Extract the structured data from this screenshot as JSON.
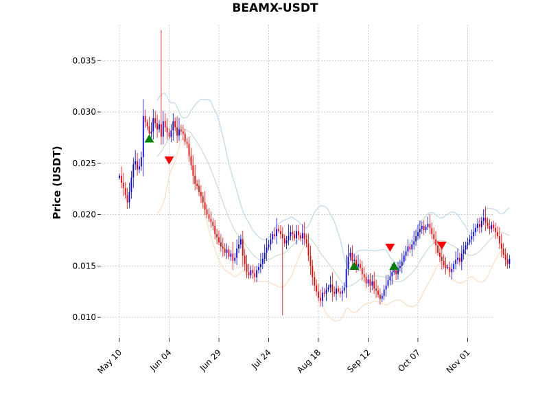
{
  "chart_data": {
    "type": "candlestick",
    "title": "BEAMX-USDT",
    "ylabel": "Price (USDT)",
    "xlabel": "",
    "start_date": "2024-05-10",
    "ylim": [
      0.008,
      0.0385
    ],
    "grid": true,
    "x_ticks": [
      "May 10",
      "Jun 04",
      "Jun 29",
      "Jul 24",
      "Aug 18",
      "Sep 12",
      "Oct 07",
      "Nov 01"
    ],
    "y_ticks": [
      "0.010",
      "0.015",
      "0.020",
      "0.025",
      "0.030",
      "0.035"
    ],
    "close": [
      0.0238,
      0.0231,
      0.0226,
      0.0219,
      0.0212,
      0.0222,
      0.0236,
      0.0249,
      0.0252,
      0.0244,
      0.0247,
      0.0256,
      0.0296,
      0.029,
      0.0286,
      0.0279,
      0.0281,
      0.0294,
      0.0289,
      0.0283,
      0.0288,
      0.0276,
      0.0291,
      0.0285,
      0.028,
      0.0276,
      0.0282,
      0.0291,
      0.0285,
      0.0277,
      0.0283,
      0.0281,
      0.0279,
      0.0271,
      0.0269,
      0.0257,
      0.0248,
      0.0238,
      0.023,
      0.0228,
      0.0222,
      0.0218,
      0.0212,
      0.0205,
      0.02,
      0.0196,
      0.0193,
      0.0189,
      0.0181,
      0.0178,
      0.0173,
      0.0169,
      0.0167,
      0.0163,
      0.0166,
      0.0159,
      0.0162,
      0.0155,
      0.0158,
      0.0167,
      0.0171,
      0.0176,
      0.016,
      0.0152,
      0.0144,
      0.0141,
      0.0146,
      0.0143,
      0.0139,
      0.0146,
      0.0149,
      0.0152,
      0.0157,
      0.0163,
      0.0168,
      0.0171,
      0.0176,
      0.0181,
      0.0179,
      0.0186,
      0.0184,
      0.0181,
      0.0177,
      0.0172,
      0.0175,
      0.0179,
      0.0183,
      0.0181,
      0.0177,
      0.0184,
      0.018,
      0.0177,
      0.0182,
      0.0176,
      0.0172,
      0.016,
      0.015,
      0.0139,
      0.0131,
      0.0125,
      0.0119,
      0.0116,
      0.0124,
      0.0123,
      0.0127,
      0.0129,
      0.0132,
      0.0125,
      0.0123,
      0.0128,
      0.0125,
      0.0123,
      0.0126,
      0.0129,
      0.0147,
      0.0159,
      0.0163,
      0.0155,
      0.0156,
      0.0149,
      0.0152,
      0.0148,
      0.0142,
      0.0139,
      0.0133,
      0.0137,
      0.0131,
      0.0135,
      0.0128,
      0.0126,
      0.0122,
      0.0118,
      0.0121,
      0.0127,
      0.0131,
      0.0136,
      0.014,
      0.0144,
      0.0146,
      0.0142,
      0.0148,
      0.015,
      0.0154,
      0.016,
      0.0164,
      0.0169,
      0.0166,
      0.0171,
      0.0174,
      0.0179,
      0.0183,
      0.0186,
      0.0189,
      0.0185,
      0.0188,
      0.0191,
      0.0187,
      0.0181,
      0.0176,
      0.017,
      0.0163,
      0.0159,
      0.0155,
      0.0151,
      0.0148,
      0.0149,
      0.0144,
      0.0147,
      0.0152,
      0.0156,
      0.0158,
      0.0154,
      0.0162,
      0.0166,
      0.017,
      0.0173,
      0.0176,
      0.0179,
      0.0183,
      0.0187,
      0.0191,
      0.0188,
      0.0194,
      0.0197,
      0.0192,
      0.0189,
      0.0186,
      0.019,
      0.0187,
      0.0183,
      0.0179,
      0.0172,
      0.0167,
      0.0161,
      0.0156,
      0.0152,
      0.0157
    ],
    "markers": {
      "buy": [
        {
          "index": 15,
          "price": 0.0274
        },
        {
          "index": 118,
          "price": 0.015
        },
        {
          "index": 138,
          "price": 0.015
        }
      ],
      "sell": [
        {
          "index": 25,
          "price": 0.0253
        },
        {
          "index": 136,
          "price": 0.0168
        },
        {
          "index": 162,
          "price": 0.017
        }
      ]
    },
    "colors": {
      "up": "#0000ff",
      "down": "#ff0000",
      "buy_marker": "#008000",
      "sell_marker": "#ff0000",
      "upper_band": "#c6dcec",
      "middle_band": "#cfe3d2",
      "lower_band": "#fde0c9"
    }
  }
}
